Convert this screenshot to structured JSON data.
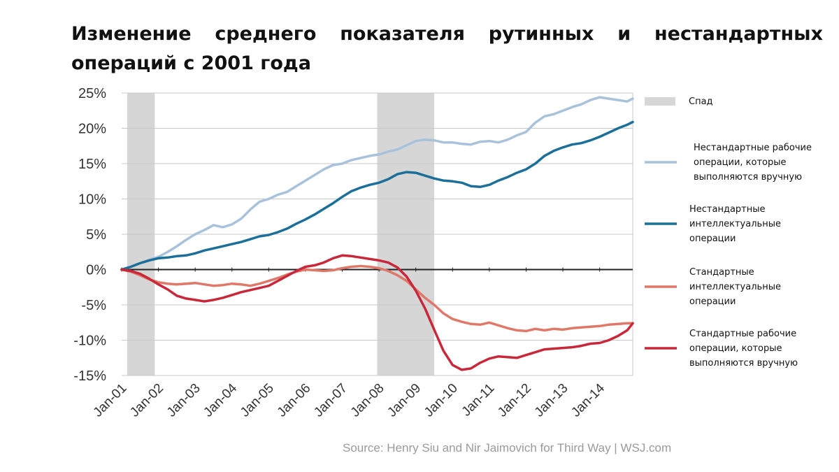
{
  "title": "Изменение среднего показателя рутинных и нестандартных операций с 2001 года",
  "source": "Source: Henry Siu and Nir Jaimovich for Third Way | WSJ.com",
  "chart_data": {
    "type": "line",
    "title": "Изменение среднего показателя рутинных и нестандартных операций с 2001 года",
    "x_ticks": [
      "Jan-01",
      "Jan-02",
      "Jan-03",
      "Jan-04",
      "Jan-05",
      "Jan-06",
      "Jan-07",
      "Jan-08",
      "Jan-09",
      "Jan-10",
      "Jan-11",
      "Jan-12",
      "Jan-13",
      "Jan-14"
    ],
    "xlim": [
      2001.0,
      2014.9
    ],
    "y_ticks": [
      "25%",
      "20%",
      "15%",
      "10%",
      "5%",
      "0%",
      "-5%",
      "-10%",
      "-15%"
    ],
    "ylim": [
      -15,
      25
    ],
    "y_unit": "%",
    "grid": "horizontal",
    "legend_position": "right",
    "recessions": [
      {
        "name": "Спад",
        "start": 2001.15,
        "end": 2001.9
      },
      {
        "name": "Спад",
        "start": 2007.95,
        "end": 2009.5
      }
    ],
    "series": [
      {
        "name": "Нестандартные рабочие операции, которые выполняются вручную",
        "color": "#a9c2dc",
        "x": [
          2001.0,
          2001.25,
          2001.5,
          2001.75,
          2002.0,
          2002.25,
          2002.5,
          2002.75,
          2003.0,
          2003.25,
          2003.5,
          2003.75,
          2004.0,
          2004.25,
          2004.5,
          2004.75,
          2005.0,
          2005.25,
          2005.5,
          2005.75,
          2006.0,
          2006.25,
          2006.5,
          2006.75,
          2007.0,
          2007.25,
          2007.5,
          2007.75,
          2008.0,
          2008.25,
          2008.5,
          2008.75,
          2009.0,
          2009.25,
          2009.5,
          2009.75,
          2010.0,
          2010.25,
          2010.5,
          2010.75,
          2011.0,
          2011.25,
          2011.5,
          2011.75,
          2012.0,
          2012.25,
          2012.5,
          2012.75,
          2013.0,
          2013.25,
          2013.5,
          2013.75,
          2014.0,
          2014.25,
          2014.5,
          2014.75,
          2014.9
        ],
        "values": [
          0.0,
          0.4,
          0.9,
          1.4,
          1.8,
          2.5,
          3.3,
          4.2,
          5.0,
          5.6,
          6.3,
          6.0,
          6.4,
          7.2,
          8.5,
          9.6,
          10.0,
          10.6,
          11.0,
          11.8,
          12.6,
          13.4,
          14.2,
          14.8,
          15.0,
          15.5,
          15.8,
          16.1,
          16.3,
          16.7,
          17.0,
          17.6,
          18.2,
          18.4,
          18.3,
          18.0,
          18.0,
          17.8,
          17.7,
          18.1,
          18.2,
          18.0,
          18.4,
          19.0,
          19.5,
          20.8,
          21.7,
          22.0,
          22.5,
          23.0,
          23.4,
          24.0,
          24.4,
          24.2,
          24.0,
          23.8,
          24.2
        ]
      },
      {
        "name": "Нестандартные интеллектуальные операции",
        "color": "#1b6f98",
        "x": [
          2001.0,
          2001.25,
          2001.5,
          2001.75,
          2002.0,
          2002.25,
          2002.5,
          2002.75,
          2003.0,
          2003.25,
          2003.5,
          2003.75,
          2004.0,
          2004.25,
          2004.5,
          2004.75,
          2005.0,
          2005.25,
          2005.5,
          2005.75,
          2006.0,
          2006.25,
          2006.5,
          2006.75,
          2007.0,
          2007.25,
          2007.5,
          2007.75,
          2008.0,
          2008.25,
          2008.5,
          2008.75,
          2009.0,
          2009.25,
          2009.5,
          2009.75,
          2010.0,
          2010.25,
          2010.5,
          2010.75,
          2011.0,
          2011.25,
          2011.5,
          2011.75,
          2012.0,
          2012.25,
          2012.5,
          2012.75,
          2013.0,
          2013.25,
          2013.5,
          2013.75,
          2014.0,
          2014.25,
          2014.5,
          2014.75,
          2014.9
        ],
        "values": [
          0.0,
          0.4,
          0.9,
          1.3,
          1.6,
          1.7,
          1.9,
          2.0,
          2.3,
          2.7,
          3.0,
          3.3,
          3.6,
          3.9,
          4.3,
          4.7,
          4.9,
          5.3,
          5.8,
          6.5,
          7.1,
          7.8,
          8.6,
          9.4,
          10.3,
          11.1,
          11.6,
          12.0,
          12.3,
          12.8,
          13.5,
          13.8,
          13.7,
          13.3,
          12.9,
          12.6,
          12.5,
          12.3,
          11.8,
          11.7,
          12.0,
          12.6,
          13.1,
          13.7,
          14.2,
          15.0,
          16.1,
          16.8,
          17.3,
          17.7,
          17.9,
          18.3,
          18.8,
          19.4,
          20.0,
          20.5,
          20.9
        ]
      },
      {
        "name": "Стандартные интеллектуальные операции",
        "color": "#e0786a",
        "x": [
          2001.0,
          2001.25,
          2001.5,
          2001.75,
          2002.0,
          2002.25,
          2002.5,
          2002.75,
          2003.0,
          2003.25,
          2003.5,
          2003.75,
          2004.0,
          2004.25,
          2004.5,
          2004.75,
          2005.0,
          2005.25,
          2005.5,
          2005.75,
          2006.0,
          2006.25,
          2006.5,
          2006.75,
          2007.0,
          2007.25,
          2007.5,
          2007.75,
          2008.0,
          2008.25,
          2008.5,
          2008.75,
          2009.0,
          2009.25,
          2009.5,
          2009.75,
          2010.0,
          2010.25,
          2010.5,
          2010.75,
          2011.0,
          2011.25,
          2011.5,
          2011.75,
          2012.0,
          2012.25,
          2012.5,
          2012.75,
          2013.0,
          2013.25,
          2013.5,
          2013.75,
          2014.0,
          2014.25,
          2014.5,
          2014.75,
          2014.9
        ],
        "values": [
          0.0,
          -0.3,
          -0.8,
          -1.4,
          -1.8,
          -2.0,
          -2.1,
          -2.0,
          -1.9,
          -2.1,
          -2.3,
          -2.2,
          -2.0,
          -2.1,
          -2.3,
          -2.0,
          -1.6,
          -1.2,
          -0.7,
          -0.3,
          0.0,
          -0.1,
          -0.2,
          -0.1,
          0.2,
          0.4,
          0.5,
          0.4,
          0.2,
          -0.2,
          -0.8,
          -1.6,
          -2.8,
          -4.0,
          -5.0,
          -6.2,
          -7.0,
          -7.4,
          -7.7,
          -7.8,
          -7.5,
          -7.9,
          -8.3,
          -8.6,
          -8.7,
          -8.4,
          -8.6,
          -8.4,
          -8.5,
          -8.3,
          -8.2,
          -8.1,
          -8.0,
          -7.8,
          -7.7,
          -7.6,
          -7.6
        ]
      },
      {
        "name": "Стандартные рабочие операции, которые выполняются вручную",
        "color": "#c8283a",
        "x": [
          2001.0,
          2001.25,
          2001.5,
          2001.75,
          2002.0,
          2002.25,
          2002.5,
          2002.75,
          2003.0,
          2003.25,
          2003.5,
          2003.75,
          2004.0,
          2004.25,
          2004.5,
          2004.75,
          2005.0,
          2005.25,
          2005.5,
          2005.75,
          2006.0,
          2006.25,
          2006.5,
          2006.75,
          2007.0,
          2007.25,
          2007.5,
          2007.75,
          2008.0,
          2008.25,
          2008.5,
          2008.75,
          2009.0,
          2009.25,
          2009.5,
          2009.75,
          2010.0,
          2010.25,
          2010.5,
          2010.75,
          2011.0,
          2011.25,
          2011.5,
          2011.75,
          2012.0,
          2012.25,
          2012.5,
          2012.75,
          2013.0,
          2013.25,
          2013.5,
          2013.75,
          2014.0,
          2014.25,
          2014.5,
          2014.75,
          2014.9
        ],
        "values": [
          0.0,
          -0.2,
          -0.6,
          -1.3,
          -2.1,
          -2.8,
          -3.7,
          -4.1,
          -4.3,
          -4.5,
          -4.3,
          -4.0,
          -3.6,
          -3.2,
          -2.9,
          -2.6,
          -2.3,
          -1.6,
          -0.9,
          -0.2,
          0.4,
          0.6,
          1.0,
          1.6,
          2.0,
          1.9,
          1.7,
          1.5,
          1.3,
          1.0,
          0.3,
          -1.0,
          -3.0,
          -5.5,
          -8.5,
          -11.5,
          -13.5,
          -14.2,
          -14.0,
          -13.2,
          -12.6,
          -12.3,
          -12.4,
          -12.5,
          -12.1,
          -11.7,
          -11.3,
          -11.2,
          -11.1,
          -11.0,
          -10.8,
          -10.5,
          -10.4,
          -10.0,
          -9.4,
          -8.6,
          -7.6
        ]
      }
    ]
  },
  "legend": [
    {
      "kind": "band",
      "color": "#d6d6d6",
      "lines": [
        "Спад"
      ]
    },
    {
      "kind": "line",
      "color": "#a9c2dc",
      "lines": [
        "Нестандартные рабочие",
        "операции, которые",
        "выполняются вручную"
      ]
    },
    {
      "kind": "line",
      "color": "#1b6f98",
      "lines": [
        "Нестандартные",
        "интеллектуальные",
        "операции"
      ]
    },
    {
      "kind": "line",
      "color": "#e0786a",
      "lines": [
        "Стандартные",
        "интеллектуальные",
        "операции"
      ]
    },
    {
      "kind": "line",
      "color": "#c8283a",
      "lines": [
        "Стандартные рабочие",
        "операции, которые",
        "выполняются вручную"
      ]
    }
  ]
}
